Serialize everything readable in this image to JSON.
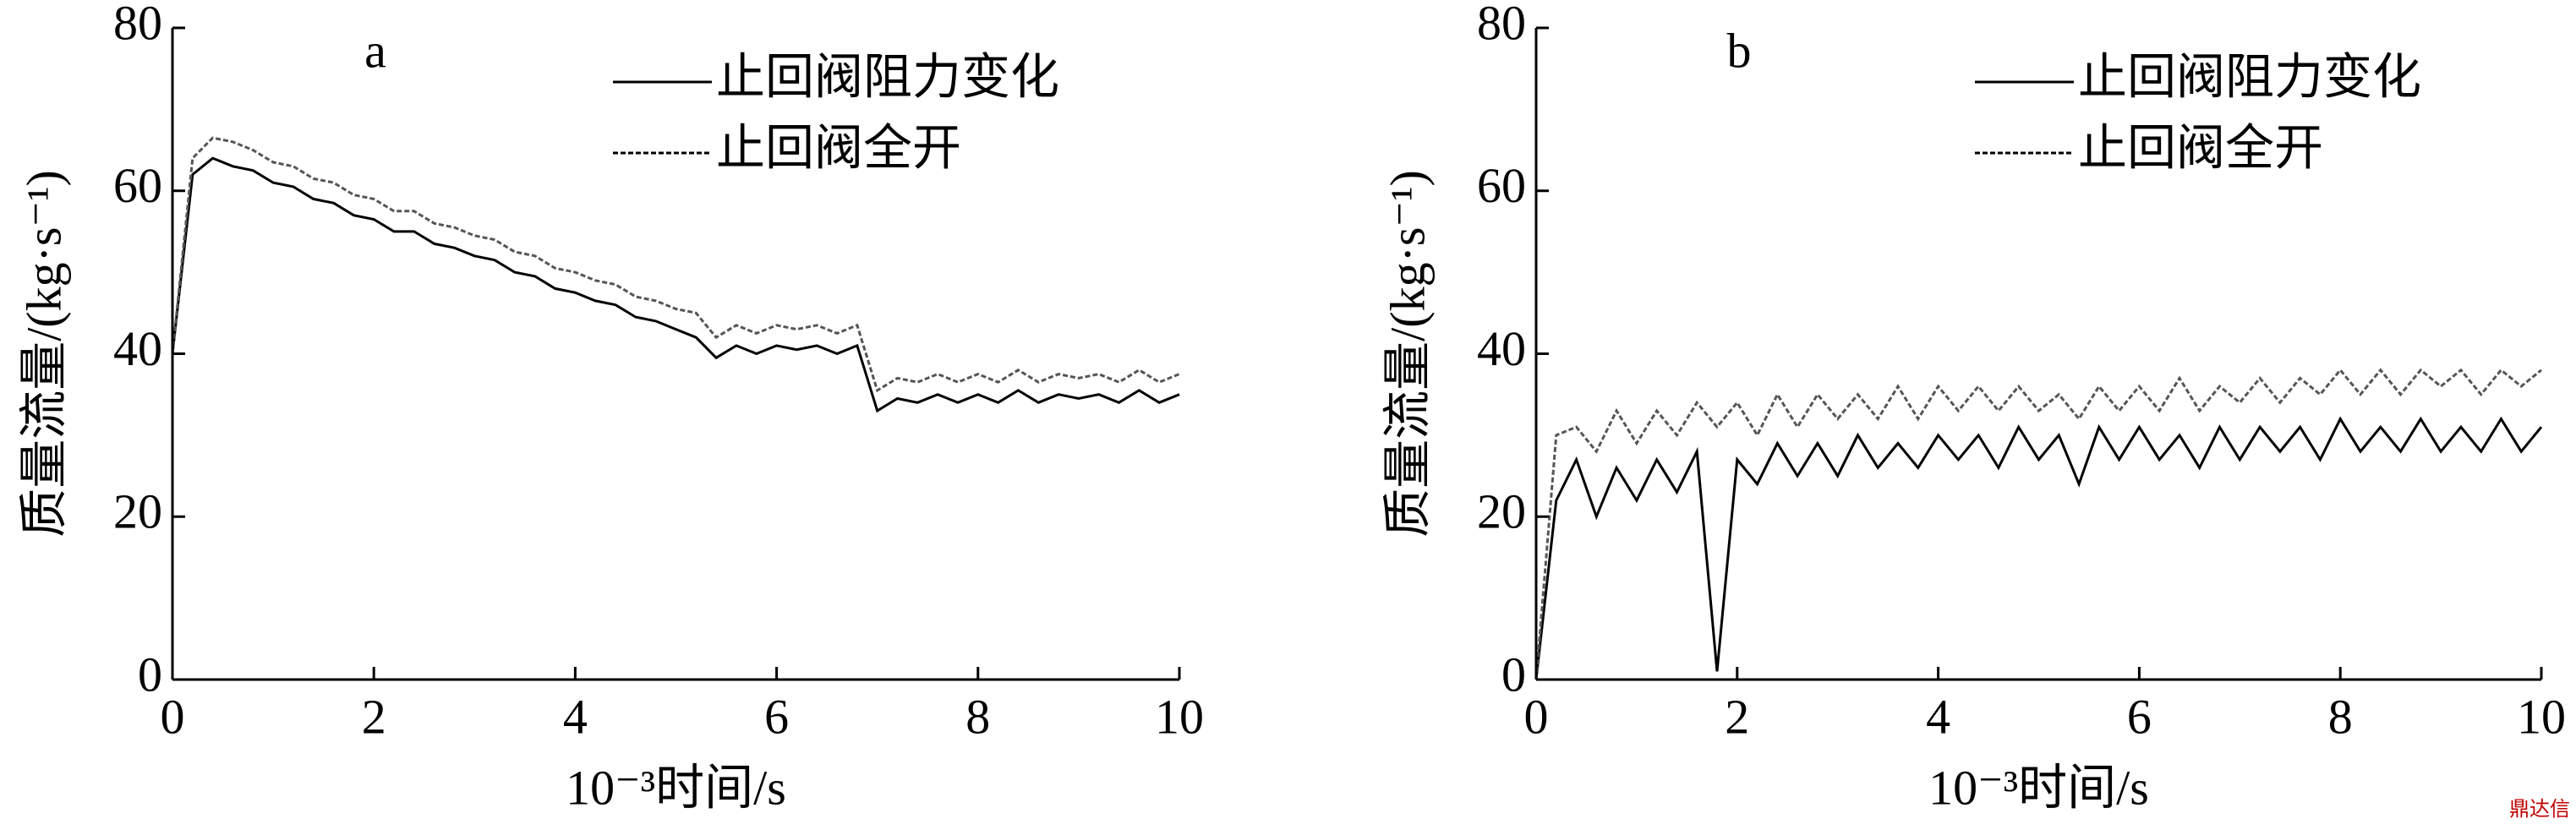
{
  "chart_data": [
    {
      "type": "line",
      "panel_label": "a",
      "xlabel": "10⁻³时间/s",
      "ylabel": "质量流量/(kg·s⁻¹)",
      "xlim": [
        0,
        10
      ],
      "xticks": [
        0,
        2,
        4,
        6,
        8,
        10
      ],
      "ylim": [
        0,
        80
      ],
      "yticks": [
        0,
        20,
        40,
        60,
        80
      ],
      "legend": "upper right",
      "x": [
        0,
        0.2,
        0.4,
        0.6,
        0.8,
        1,
        1.2,
        1.4,
        1.6,
        1.8,
        2,
        2.2,
        2.4,
        2.6,
        2.8,
        3,
        3.2,
        3.4,
        3.6,
        3.8,
        4,
        4.2,
        4.4,
        4.6,
        4.8,
        5,
        5.2,
        5.4,
        5.6,
        5.8,
        6,
        6.2,
        6.4,
        6.6,
        6.8,
        7,
        7.2,
        7.4,
        7.6,
        7.8,
        8,
        8.2,
        8.4,
        8.6,
        8.8,
        9,
        9.2,
        9.4,
        9.6,
        9.8,
        10
      ],
      "series": [
        {
          "name": "止回阀阻力变化",
          "color": "#000000",
          "linestyle": "solid",
          "values": [
            40,
            62,
            64,
            63,
            62.5,
            61,
            60.5,
            59,
            58.5,
            57,
            56.5,
            55,
            55,
            53.5,
            53,
            52,
            51.5,
            50,
            49.5,
            48,
            47.5,
            46.5,
            46,
            44.5,
            44,
            43,
            42,
            39.5,
            41,
            40,
            41,
            40.5,
            41,
            40,
            41,
            33,
            34.5,
            34,
            35,
            34,
            35,
            34,
            35.5,
            34,
            35,
            34.5,
            35,
            34,
            35.5,
            34,
            35
          ]
        },
        {
          "name": "止回阀全开",
          "color": "#555555",
          "linestyle": "dashed",
          "values": [
            40,
            64,
            66.5,
            66,
            65,
            63.5,
            63,
            61.5,
            61,
            59.5,
            59,
            57.5,
            57.5,
            56,
            55.5,
            54.5,
            54,
            52.5,
            52,
            50.5,
            50,
            49,
            48.5,
            47,
            46.5,
            45.5,
            45,
            42,
            43.5,
            42.5,
            43.5,
            43,
            43.5,
            42.5,
            43.5,
            35.5,
            37,
            36.5,
            37.5,
            36.5,
            37.5,
            36.5,
            38,
            36.5,
            37.5,
            37,
            37.5,
            36.5,
            38,
            36.5,
            37.5
          ]
        }
      ]
    },
    {
      "type": "line",
      "panel_label": "b",
      "xlabel": "10⁻³时间/s",
      "ylabel": "质量流量/(kg·s⁻¹)",
      "xlim": [
        0,
        10
      ],
      "xticks": [
        0,
        2,
        4,
        6,
        8,
        10
      ],
      "ylim": [
        0,
        80
      ],
      "yticks": [
        0,
        20,
        40,
        60,
        80
      ],
      "legend": "upper right",
      "x": [
        0,
        0.2,
        0.4,
        0.6,
        0.8,
        1,
        1.2,
        1.4,
        1.6,
        1.8,
        2,
        2.2,
        2.4,
        2.6,
        2.8,
        3,
        3.2,
        3.4,
        3.6,
        3.8,
        4,
        4.2,
        4.4,
        4.6,
        4.8,
        5,
        5.2,
        5.4,
        5.6,
        5.8,
        6,
        6.2,
        6.4,
        6.6,
        6.8,
        7,
        7.2,
        7.4,
        7.6,
        7.8,
        8,
        8.2,
        8.4,
        8.6,
        8.8,
        9,
        9.2,
        9.4,
        9.6,
        9.8,
        10
      ],
      "series": [
        {
          "name": "止回阀阻力变化",
          "color": "#000000",
          "linestyle": "solid",
          "values": [
            0,
            22,
            27,
            20,
            26,
            22,
            27,
            23,
            28,
            1,
            27,
            24,
            29,
            25,
            29,
            25,
            30,
            26,
            29,
            26,
            30,
            27,
            30,
            26,
            31,
            27,
            30,
            24,
            31,
            27,
            31,
            27,
            30,
            26,
            31,
            27,
            31,
            28,
            31,
            27,
            32,
            28,
            31,
            28,
            32,
            28,
            31,
            28,
            32,
            28,
            31
          ]
        },
        {
          "name": "止回阀全开",
          "color": "#555555",
          "linestyle": "dashed",
          "values": [
            0,
            30,
            31,
            28,
            33,
            29,
            33,
            30,
            34,
            31,
            34,
            30,
            35,
            31,
            35,
            32,
            35,
            32,
            36,
            32,
            36,
            33,
            36,
            33,
            36,
            33,
            35,
            32,
            36,
            33,
            36,
            33,
            37,
            33,
            36,
            34,
            37,
            34,
            37,
            35,
            38,
            35,
            38,
            35,
            38,
            36,
            38,
            35,
            38,
            36,
            38
          ]
        }
      ]
    }
  ],
  "watermark": "鼎达信"
}
